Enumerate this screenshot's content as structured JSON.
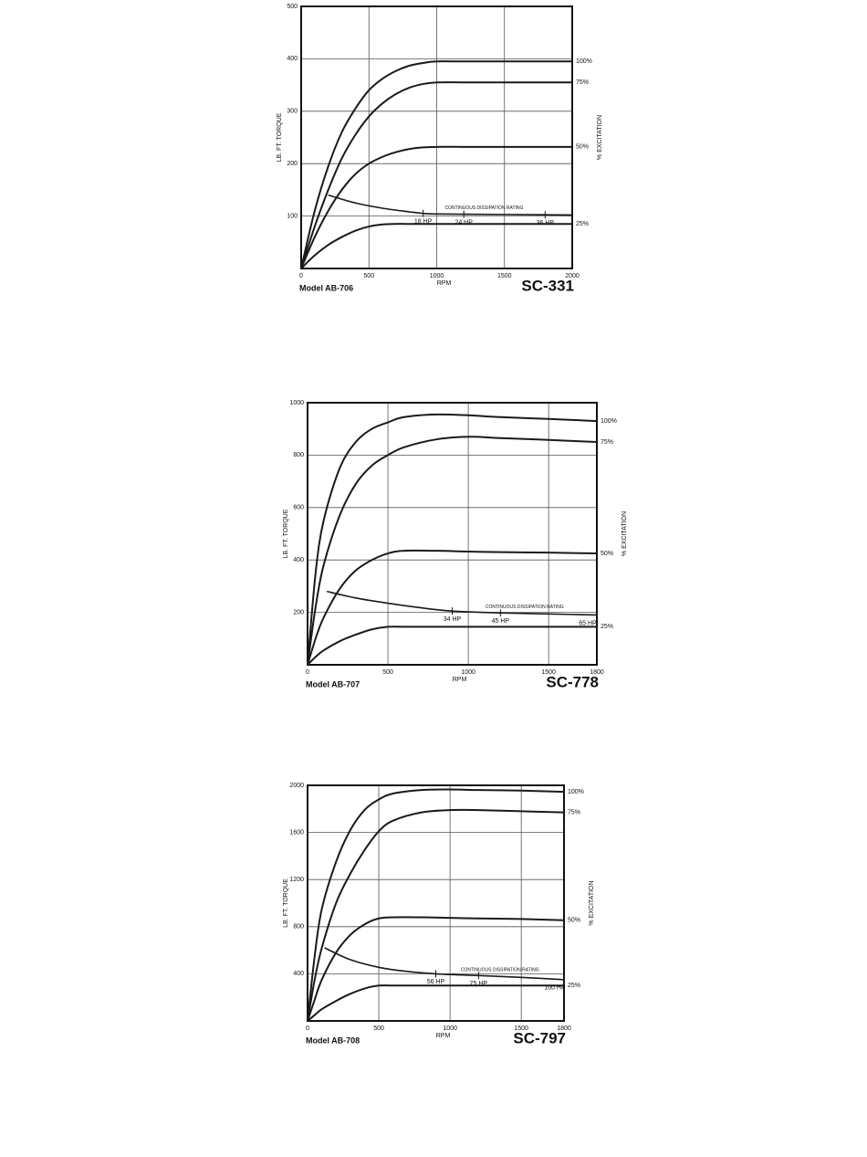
{
  "chart_data": [
    {
      "type": "line",
      "y_label": "LB. FT. TORQUE",
      "x_label": "RPM",
      "y2_label": "% EXCITATION",
      "model": "Model AB-706",
      "code": "SC-331",
      "color": "#1a1a1a",
      "grid": true,
      "xlim": [
        0,
        2000
      ],
      "xticks": [
        0,
        500,
        1000,
        1500,
        2000
      ],
      "ylim": [
        0,
        500
      ],
      "yticks": [
        100,
        200,
        300,
        400,
        500
      ],
      "x": [
        0,
        100,
        200,
        300,
        400,
        500,
        600,
        700,
        800,
        900,
        1000,
        1200,
        1500,
        2000
      ],
      "series": [
        {
          "name": "100%",
          "values": [
            0,
            110,
            195,
            260,
            305,
            340,
            362,
            377,
            387,
            392,
            395,
            395,
            395,
            395
          ]
        },
        {
          "name": "75%",
          "values": [
            0,
            80,
            150,
            210,
            255,
            290,
            315,
            333,
            345,
            352,
            355,
            355,
            355,
            355
          ]
        },
        {
          "name": "50%",
          "values": [
            0,
            60,
            110,
            150,
            180,
            200,
            213,
            222,
            228,
            231,
            232,
            232,
            232,
            232
          ]
        },
        {
          "name": "25%",
          "values": [
            0,
            25,
            45,
            60,
            72,
            80,
            84,
            85,
            85,
            85,
            85,
            85,
            85,
            85
          ]
        }
      ],
      "dissipation": {
        "label": "CONTINUOUS DISSIPATION RATING",
        "x": [
          200,
          400,
          600,
          800,
          900,
          1000,
          1500,
          2000
        ],
        "values": [
          140,
          125,
          115,
          108,
          105,
          104,
          103,
          102
        ],
        "hp_labels": [
          {
            "text": "18 HP",
            "x": 900
          },
          {
            "text": "24 HP",
            "x": 1200
          },
          {
            "text": "36 HP",
            "x": 1800
          }
        ]
      }
    },
    {
      "type": "line",
      "y_label": "LB. FT. TORQUE",
      "x_label": "RPM",
      "y2_label": "% EXCITATION",
      "model": "Model AB-707",
      "code": "SC-778",
      "color": "#1a1a1a",
      "grid": true,
      "xlim": [
        0,
        1800
      ],
      "xticks": [
        0,
        500,
        1000,
        1500,
        1800
      ],
      "ylim": [
        0,
        1000
      ],
      "yticks": [
        200,
        400,
        600,
        800,
        1000
      ],
      "x": [
        0,
        50,
        100,
        200,
        300,
        400,
        500,
        600,
        800,
        1000,
        1200,
        1500,
        1800
      ],
      "series": [
        {
          "name": "100%",
          "values": [
            0,
            350,
            550,
            750,
            850,
            900,
            925,
            945,
            955,
            952,
            945,
            938,
            930
          ]
        },
        {
          "name": "75%",
          "values": [
            0,
            220,
            380,
            570,
            690,
            760,
            800,
            830,
            860,
            870,
            865,
            858,
            850
          ]
        },
        {
          "name": "50%",
          "values": [
            0,
            100,
            180,
            290,
            360,
            400,
            425,
            435,
            435,
            432,
            430,
            428,
            425
          ]
        },
        {
          "name": "25%",
          "values": [
            0,
            30,
            55,
            90,
            115,
            135,
            145,
            145,
            145,
            145,
            145,
            145,
            145
          ]
        }
      ],
      "dissipation": {
        "label": "CONTINUOUS DISSIPATION RATING",
        "x": [
          120,
          300,
          500,
          700,
          900,
          1200,
          1500,
          1800
        ],
        "values": [
          280,
          255,
          235,
          218,
          205,
          198,
          194,
          190
        ],
        "hp_labels": [
          {
            "text": "34 HP",
            "x": 900
          },
          {
            "text": "45 HP",
            "x": 1200
          },
          {
            "text": "65 HP",
            "x": 1800
          }
        ]
      }
    },
    {
      "type": "line",
      "y_label": "LB. FT. TORQUE",
      "x_label": "RPM",
      "y2_label": "% EXCITATION",
      "model": "Model AB-708",
      "code": "SC-797",
      "color": "#1a1a1a",
      "grid": true,
      "xlim": [
        0,
        1800
      ],
      "xticks": [
        0,
        500,
        1000,
        1500,
        1800
      ],
      "ylim": [
        0,
        2000
      ],
      "yticks": [
        400,
        800,
        1200,
        1600,
        2000
      ],
      "x": [
        0,
        50,
        100,
        200,
        300,
        400,
        500,
        600,
        800,
        1000,
        1200,
        1500,
        1800
      ],
      "series": [
        {
          "name": "100%",
          "values": [
            0,
            550,
            950,
            1350,
            1620,
            1790,
            1880,
            1930,
            1960,
            1965,
            1960,
            1955,
            1945
          ]
        },
        {
          "name": "75%",
          "values": [
            0,
            350,
            620,
            1000,
            1250,
            1450,
            1610,
            1700,
            1770,
            1790,
            1790,
            1780,
            1770
          ]
        },
        {
          "name": "50%",
          "values": [
            0,
            180,
            350,
            580,
            730,
            820,
            870,
            880,
            880,
            875,
            870,
            865,
            855
          ]
        },
        {
          "name": "25%",
          "values": [
            0,
            50,
            100,
            170,
            230,
            275,
            300,
            300,
            300,
            300,
            300,
            300,
            300
          ]
        }
      ],
      "dissipation": {
        "label": "CONTINUOUS DISSIPATION RATING",
        "x": [
          120,
          300,
          500,
          700,
          900,
          1200,
          1500,
          1800
        ],
        "values": [
          620,
          520,
          455,
          420,
          400,
          385,
          370,
          350
        ],
        "hp_labels": [
          {
            "text": "56 HP",
            "x": 900
          },
          {
            "text": "75 HP",
            "x": 1200
          },
          {
            "text": "100 HP",
            "x": 1800
          }
        ]
      }
    }
  ]
}
